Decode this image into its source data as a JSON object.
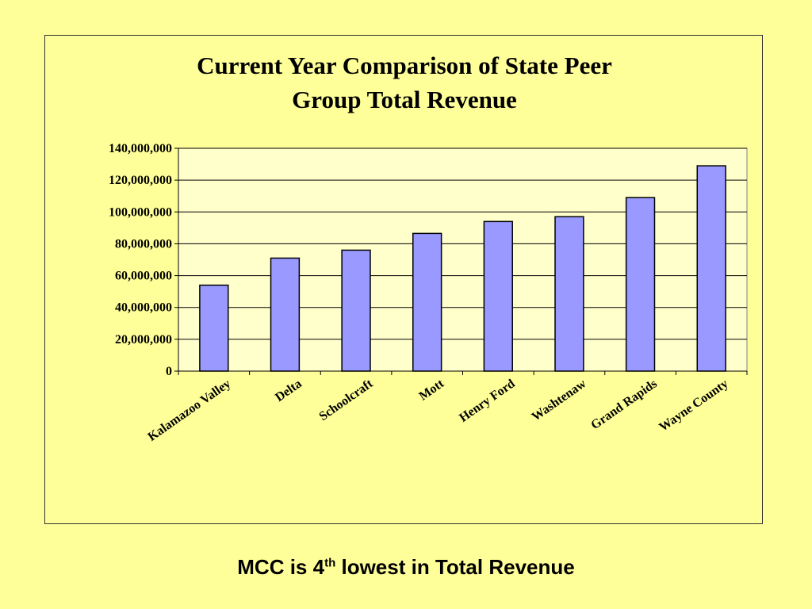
{
  "chart_data": {
    "type": "bar",
    "title_lines": [
      "Current Year Comparison of State Peer",
      "Group Total Revenue"
    ],
    "categories": [
      "Kalamazoo Valley",
      "Delta",
      "Schoolcraft",
      "Mott",
      "Henry Ford",
      "Washtenaw",
      "Grand Rapids",
      "Wayne County"
    ],
    "values": [
      54000000,
      71000000,
      76000000,
      86500000,
      94000000,
      97000000,
      109000000,
      129000000
    ],
    "ylim": [
      0,
      140000000
    ],
    "yticks": [
      0,
      20000000,
      40000000,
      60000000,
      80000000,
      100000000,
      120000000,
      140000000
    ],
    "ytick_labels": [
      "0",
      "20,000,000",
      "40,000,000",
      "60,000,000",
      "80,000,000",
      "100,000,000",
      "120,000,000",
      "140,000,000"
    ],
    "grid": true,
    "legend": "none",
    "colors": {
      "bar_fill": "#9999FF",
      "bar_stroke": "#000000",
      "plot_bg": "#FFFFCC",
      "page_bg": "#FFFF99",
      "grid": "#000000"
    }
  },
  "caption": {
    "prefix": "MCC is 4",
    "superscript": "th",
    "suffix": " lowest in Total Revenue"
  }
}
